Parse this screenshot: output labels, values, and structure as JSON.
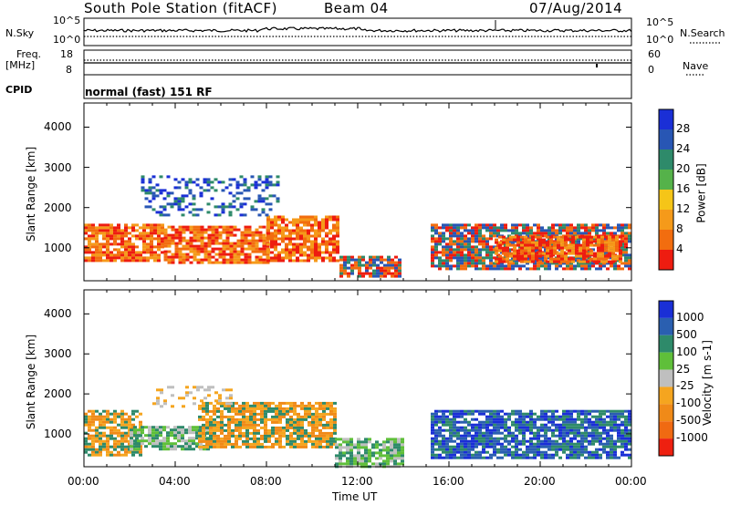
{
  "header": {
    "station": "South Pole Station (fitACF)",
    "beam": "Beam 04",
    "date": "07/Aug/2014"
  },
  "strip": {
    "nsky_label": "N.Sky",
    "nsearch_label": "N.Search",
    "noise_ticks": [
      "10^5",
      "10^0"
    ],
    "noise_ticks_right": [
      "10^5",
      "10^0"
    ],
    "freq_label": "Freq.",
    "freq_unit": "[MHz]",
    "freq_ticks": [
      "18",
      "8"
    ],
    "nave_label": "Nave",
    "nave_ticks": [
      "60",
      "0"
    ],
    "cpid_label": "CPID",
    "cpid_text": "normal (fast) 151 RF"
  },
  "time_axis": {
    "label": "Time UT",
    "ticks": [
      "00:00",
      "04:00",
      "08:00",
      "12:00",
      "16:00",
      "20:00",
      "00:00"
    ]
  },
  "colors": {
    "power_scale": [
      "#1a2fd6",
      "#2856b4",
      "#2e8a6a",
      "#55b24a",
      "#f5c518",
      "#f59a1a",
      "#f26d0f",
      "#ee1c10"
    ],
    "velocity_scale": [
      "#1a2fd6",
      "#2a5fb0",
      "#2e8a6a",
      "#5fbf3a",
      "#bfbfbf",
      "#f5a51f",
      "#f08a18",
      "#f06a12",
      "#ee2010"
    ]
  },
  "chart_data": [
    {
      "type": "heatmap",
      "name": "power",
      "ylabel": "Slant Range [km]",
      "xlabel": "",
      "ylim": [
        180,
        4600
      ],
      "yticks": [
        "4000",
        "3000",
        "2000",
        "1000"
      ],
      "colorbar_label": "Power [dB]",
      "colorbar_ticks": [
        "28",
        "24",
        "20",
        "16",
        "12",
        "8",
        "4"
      ],
      "xlim_hours": [
        0,
        24
      ],
      "bands": [
        {
          "t0": 0.0,
          "t1": 3.5,
          "r0": 700,
          "r1": 1600,
          "level": "strong"
        },
        {
          "t0": 3.5,
          "t1": 8.0,
          "r0": 650,
          "r1": 1550,
          "level": "strong"
        },
        {
          "t0": 8.0,
          "t1": 11.2,
          "r0": 700,
          "r1": 1800,
          "level": "strong"
        },
        {
          "t0": 11.2,
          "t1": 13.8,
          "r0": 300,
          "r1": 800,
          "level": "medium"
        },
        {
          "t0": 2.5,
          "t1": 8.5,
          "r0": 1800,
          "r1": 2800,
          "level": "weak"
        },
        {
          "t0": 15.2,
          "t1": 24.0,
          "r0": 450,
          "r1": 1600,
          "level": "medium"
        },
        {
          "t0": 18.0,
          "t1": 23.5,
          "r0": 650,
          "r1": 1300,
          "level": "strong"
        }
      ]
    },
    {
      "type": "heatmap",
      "name": "velocity",
      "ylabel": "Slant Range [km]",
      "xlabel": "Time UT",
      "ylim": [
        180,
        4600
      ],
      "yticks": [
        "4000",
        "3000",
        "2000",
        "1000"
      ],
      "colorbar_label": "Velocity [m s-1]",
      "colorbar_ticks": [
        "1000",
        "500",
        "100",
        "25",
        "-25",
        "-100",
        "-500",
        "-1000"
      ],
      "xlim_hours": [
        0,
        24
      ],
      "bands": [
        {
          "t0": 0.0,
          "t1": 2.5,
          "r0": 500,
          "r1": 1600,
          "level": "neg"
        },
        {
          "t0": 2.0,
          "t1": 5.5,
          "r0": 600,
          "r1": 1200,
          "level": "pos_low"
        },
        {
          "t0": 5.0,
          "t1": 11.0,
          "r0": 700,
          "r1": 1800,
          "level": "neg"
        },
        {
          "t0": 3.0,
          "t1": 6.5,
          "r0": 1700,
          "r1": 2200,
          "level": "zero"
        },
        {
          "t0": 11.0,
          "t1": 14.0,
          "r0": 200,
          "r1": 900,
          "level": "pos_low"
        },
        {
          "t0": 15.2,
          "t1": 24.0,
          "r0": 400,
          "r1": 1600,
          "level": "pos"
        }
      ]
    }
  ]
}
